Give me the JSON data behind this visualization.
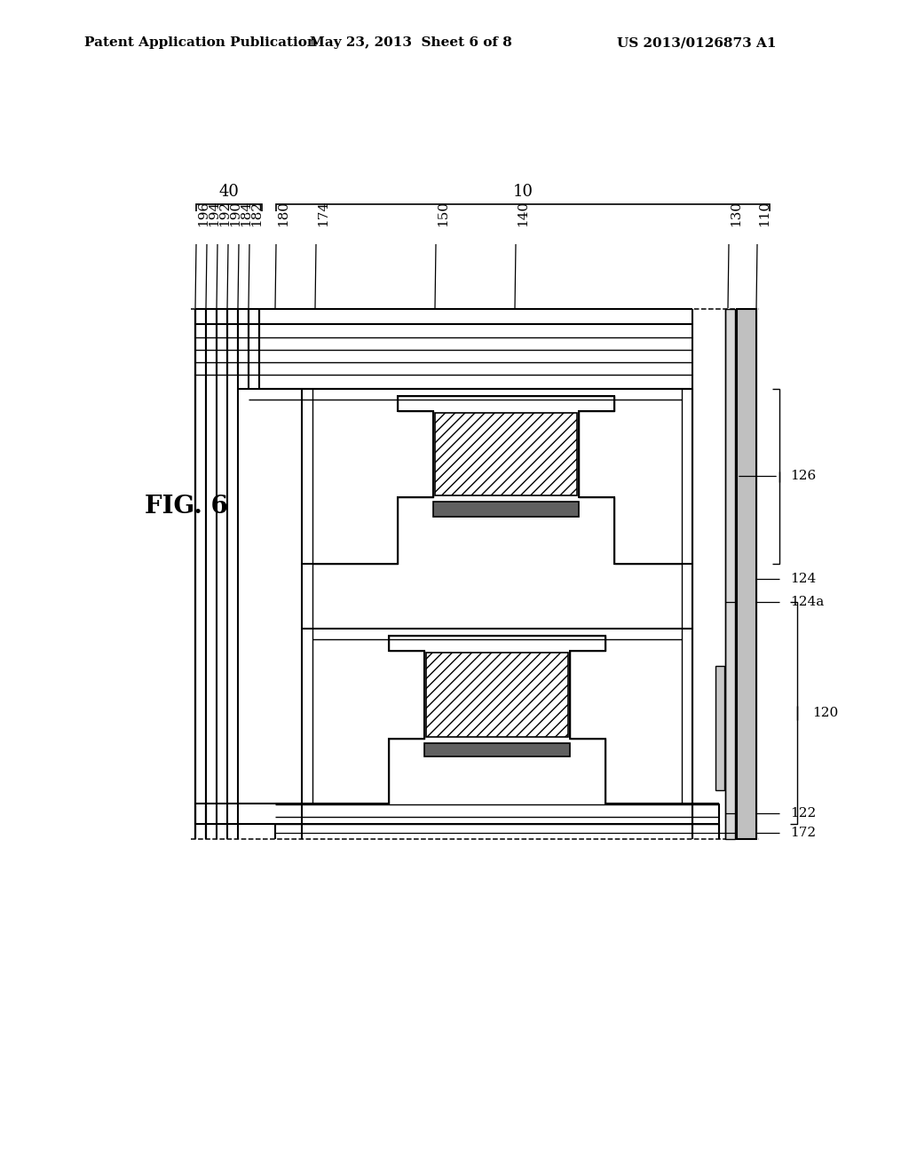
{
  "header_left": "Patent Application Publication",
  "header_mid": "May 23, 2013  Sheet 6 of 8",
  "header_right": "US 2013/0126873 A1",
  "fig_label": "FIG. 6",
  "label_40": "40",
  "label_10": "10",
  "labels_top_left": [
    "196",
    "194",
    "192",
    "190",
    "184",
    "182"
  ],
  "labels_top_right": [
    "180",
    "174",
    "150",
    "140",
    "130",
    "110"
  ],
  "labels_side_right": [
    "126",
    "124",
    "124a",
    "120",
    "122",
    "172"
  ],
  "bg": "#ffffff"
}
